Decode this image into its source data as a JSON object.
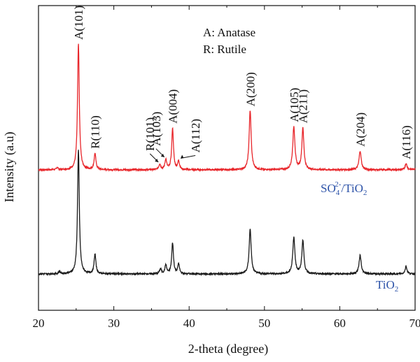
{
  "chart_data": {
    "type": "line",
    "xlabel": "2-theta (degree)",
    "ylabel": "Intensity (a.u)",
    "xlim": [
      20,
      70
    ],
    "xticks": [
      "20",
      "30",
      "40",
      "50",
      "60",
      "70"
    ],
    "yticks_shown": false,
    "legend": {
      "placement": "top-center",
      "entries": [
        "A: Anatase",
        "R: Rutile"
      ]
    },
    "series": [
      {
        "name": "SO4 2-/TiO2",
        "name_parts": {
          "main": "SO",
          "sub": "4",
          "sup": "2-",
          "tail": "/TiO",
          "sub2": "2"
        },
        "color": "#e8262b",
        "baseline": 0.0,
        "peaks": [
          {
            "x": 22.5,
            "h": 0.02,
            "w": 0.12
          },
          {
            "x": 25.3,
            "h": 1.0,
            "w": 0.14
          },
          {
            "x": 27.5,
            "h": 0.13,
            "w": 0.14
          },
          {
            "x": 36.1,
            "h": 0.045,
            "w": 0.14
          },
          {
            "x": 36.9,
            "h": 0.08,
            "w": 0.14
          },
          {
            "x": 37.8,
            "h": 0.33,
            "w": 0.14
          },
          {
            "x": 38.6,
            "h": 0.07,
            "w": 0.13
          },
          {
            "x": 48.1,
            "h": 0.47,
            "w": 0.16
          },
          {
            "x": 53.9,
            "h": 0.34,
            "w": 0.17
          },
          {
            "x": 55.1,
            "h": 0.33,
            "w": 0.16
          },
          {
            "x": 62.7,
            "h": 0.15,
            "w": 0.17
          },
          {
            "x": 68.8,
            "h": 0.05,
            "w": 0.15
          },
          {
            "x": 70.3,
            "h": 0.05,
            "w": 0.15
          }
        ]
      },
      {
        "name": "TiO2",
        "name_parts": {
          "main": "TiO",
          "sub": "2"
        },
        "color": "#1a1a1a",
        "baseline": 0.0,
        "peaks": [
          {
            "x": 22.8,
            "h": 0.02,
            "w": 0.12
          },
          {
            "x": 25.3,
            "h": 1.0,
            "w": 0.14
          },
          {
            "x": 27.5,
            "h": 0.16,
            "w": 0.14
          },
          {
            "x": 36.2,
            "h": 0.04,
            "w": 0.14
          },
          {
            "x": 36.9,
            "h": 0.07,
            "w": 0.14
          },
          {
            "x": 37.8,
            "h": 0.25,
            "w": 0.14
          },
          {
            "x": 38.6,
            "h": 0.08,
            "w": 0.13
          },
          {
            "x": 48.1,
            "h": 0.36,
            "w": 0.16
          },
          {
            "x": 53.9,
            "h": 0.29,
            "w": 0.17
          },
          {
            "x": 55.1,
            "h": 0.27,
            "w": 0.16
          },
          {
            "x": 62.7,
            "h": 0.15,
            "w": 0.17
          },
          {
            "x": 68.8,
            "h": 0.06,
            "w": 0.15
          }
        ]
      }
    ],
    "annotations": [
      {
        "text": "A(101)",
        "x": 25.3,
        "series": 0
      },
      {
        "text": "R(110)",
        "x": 27.5,
        "series": 0
      },
      {
        "text": "R(101)",
        "x": 36.1,
        "series": 0,
        "arrow": true
      },
      {
        "text": "A(103)",
        "x": 36.9,
        "series": 0,
        "arrow": true
      },
      {
        "text": "A(004)",
        "x": 37.8,
        "series": 0
      },
      {
        "text": "A(112)",
        "x": 38.6,
        "series": 0,
        "arrow": true
      },
      {
        "text": "A(200)",
        "x": 48.1,
        "series": 0
      },
      {
        "text": "A(105)",
        "x": 53.9,
        "series": 0
      },
      {
        "text": "A(211)",
        "x": 55.1,
        "series": 0
      },
      {
        "text": "A(204)",
        "x": 62.7,
        "series": 0
      },
      {
        "text": "A(116)",
        "x": 68.8,
        "series": 0
      }
    ],
    "colors": {
      "red_series": "#e8262b",
      "black_series": "#1a1a1a",
      "series_label": "#2c52a8"
    }
  }
}
